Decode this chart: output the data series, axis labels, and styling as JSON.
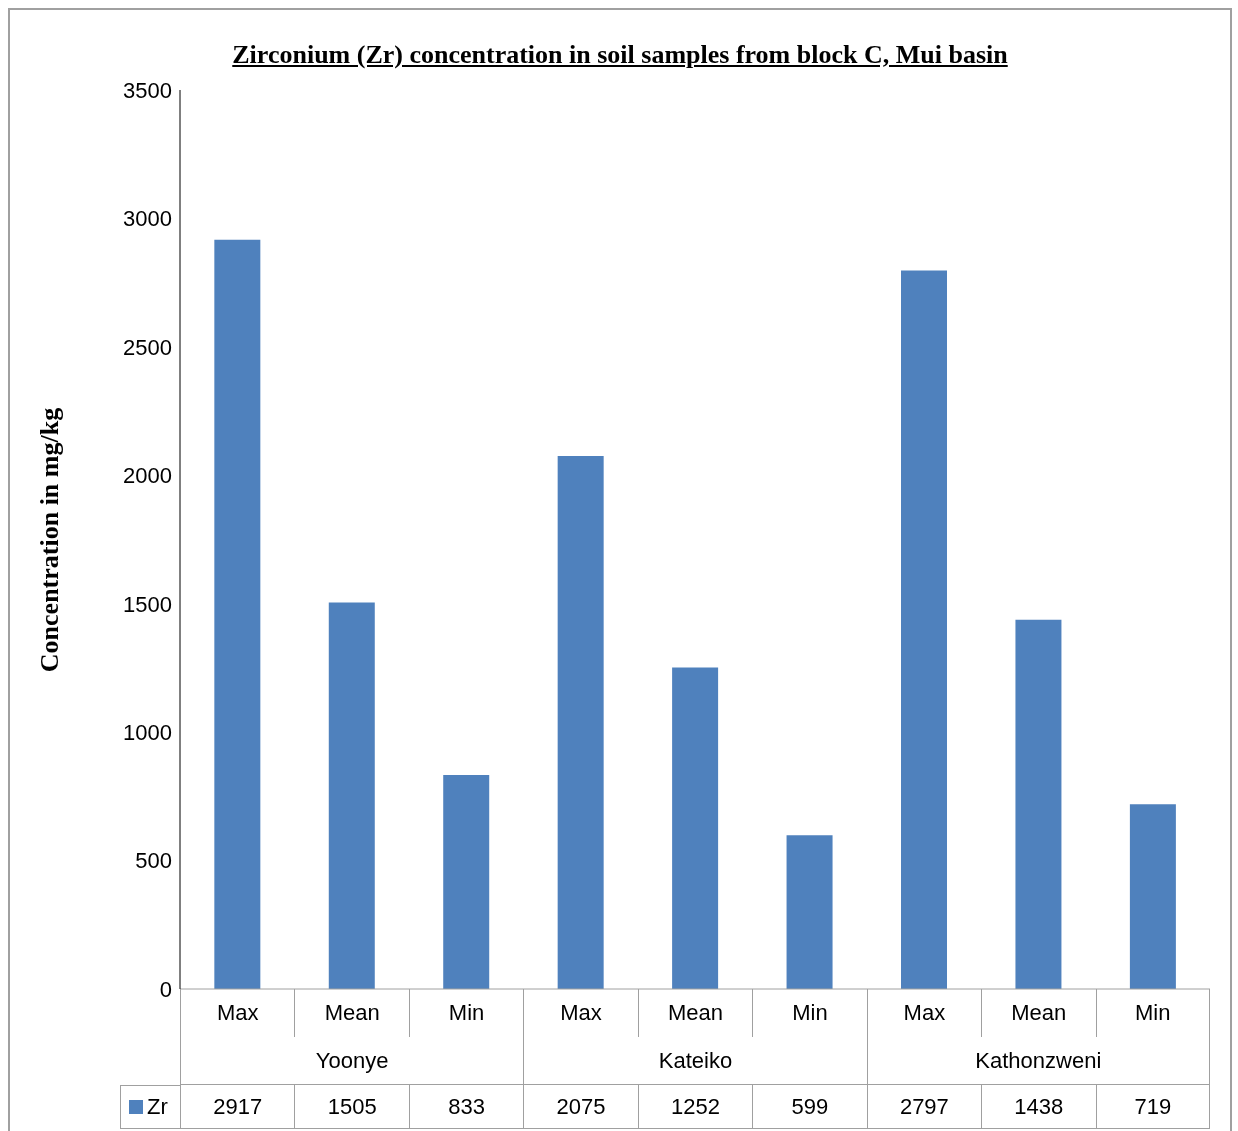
{
  "chart_data": {
    "type": "bar",
    "title": "Zirconium (Zr) concentration in soil samples from block C, Mui basin",
    "ylabel": "Concentration in mg/kg",
    "categories": [
      "Max",
      "Mean",
      "Min",
      "Max",
      "Mean",
      "Min",
      "Max",
      "Mean",
      "Min"
    ],
    "annotations": [
      "Yoonye",
      "Kateiko",
      "Kathonzweni"
    ],
    "series": [
      {
        "name": "Zr",
        "color": "#4f81bd",
        "values": [
          2917,
          1505,
          833,
          2075,
          1252,
          599,
          2797,
          1438,
          719
        ]
      }
    ],
    "ylim": [
      0,
      3500
    ],
    "yticks": [
      0,
      500,
      1000,
      1500,
      2000,
      2500,
      3000,
      3500
    ],
    "grid": false,
    "legend": "bottom left",
    "data_labels": true
  }
}
